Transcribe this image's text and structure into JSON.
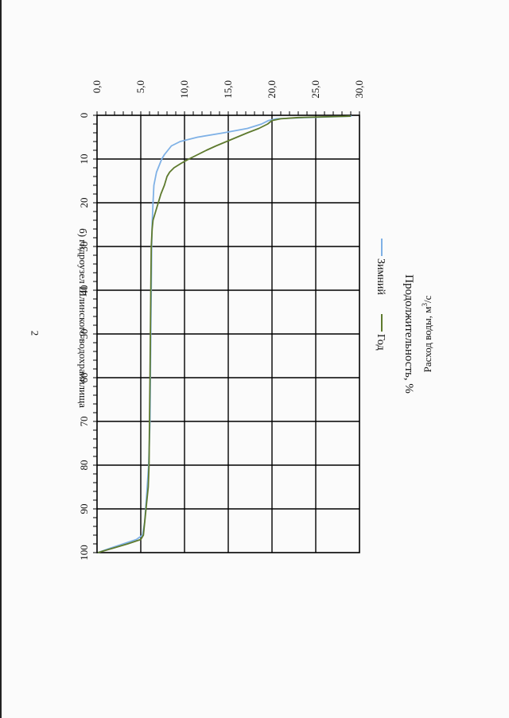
{
  "page": {
    "number": "2"
  },
  "chart_data": {
    "type": "line",
    "title": "б) гидроузел Шлинского водохранилища",
    "xlabel": "Продолжительность, %",
    "ylabel_main": "Расход воды, м",
    "ylabel_sup": "3",
    "ylabel_tail": "/с",
    "xlim": [
      0,
      100
    ],
    "ylim": [
      0,
      30
    ],
    "x_ticks": [
      "0",
      "10",
      "20",
      "30",
      "40",
      "50",
      "60",
      "70",
      "80",
      "90",
      "100"
    ],
    "y_ticks": [
      "0,0",
      "5,0",
      "10,0",
      "15,0",
      "20,0",
      "25,0",
      "30,0"
    ],
    "grid": true,
    "legend_position": "bottom",
    "series": [
      {
        "name": "Зимний",
        "color": "#7fb1e6",
        "points": [
          [
            0.2,
            29.1
          ],
          [
            0.5,
            24.0
          ],
          [
            0.8,
            20.5
          ],
          [
            1.2,
            19.6
          ],
          [
            2,
            18.8
          ],
          [
            3,
            17.2
          ],
          [
            4,
            14.5
          ],
          [
            5,
            11.5
          ],
          [
            6,
            9.5
          ],
          [
            7,
            8.5
          ],
          [
            8,
            8.1
          ],
          [
            9,
            7.7
          ],
          [
            10,
            7.4
          ],
          [
            11,
            7.2
          ],
          [
            12,
            7.0
          ],
          [
            13,
            6.8
          ],
          [
            14,
            6.7
          ],
          [
            15,
            6.6
          ],
          [
            16,
            6.5
          ],
          [
            20,
            6.4
          ],
          [
            25,
            6.3
          ],
          [
            30,
            6.25
          ],
          [
            40,
            6.2
          ],
          [
            50,
            6.15
          ],
          [
            60,
            6.1
          ],
          [
            70,
            6.05
          ],
          [
            80,
            5.9
          ],
          [
            83,
            5.8
          ],
          [
            86,
            5.7
          ],
          [
            90,
            5.55
          ],
          [
            93,
            5.45
          ],
          [
            96,
            5.2
          ],
          [
            97,
            4.5
          ],
          [
            98,
            3.0
          ],
          [
            99,
            1.5
          ],
          [
            100,
            0.1
          ]
        ]
      },
      {
        "name": "Год",
        "color": "#5e7a2e",
        "points": [
          [
            0.2,
            29.0
          ],
          [
            0.5,
            23.0
          ],
          [
            0.8,
            21.0
          ],
          [
            1.2,
            20.0
          ],
          [
            2,
            19.5
          ],
          [
            3,
            18.5
          ],
          [
            4,
            17.2
          ],
          [
            5,
            16.0
          ],
          [
            6,
            14.8
          ],
          [
            7,
            13.6
          ],
          [
            8,
            12.5
          ],
          [
            9,
            11.5
          ],
          [
            10,
            10.5
          ],
          [
            11,
            9.6
          ],
          [
            12,
            8.8
          ],
          [
            13,
            8.3
          ],
          [
            14,
            8.0
          ],
          [
            16,
            7.7
          ],
          [
            18,
            7.3
          ],
          [
            20,
            7.0
          ],
          [
            22,
            6.7
          ],
          [
            24,
            6.4
          ],
          [
            26,
            6.3
          ],
          [
            30,
            6.2
          ],
          [
            40,
            6.15
          ],
          [
            50,
            6.1
          ],
          [
            60,
            6.05
          ],
          [
            70,
            6.0
          ],
          [
            80,
            5.95
          ],
          [
            85,
            5.85
          ],
          [
            88,
            5.7
          ],
          [
            90,
            5.6
          ],
          [
            92,
            5.5
          ],
          [
            94,
            5.4
          ],
          [
            96,
            5.3
          ],
          [
            97,
            5.0
          ],
          [
            98,
            3.5
          ],
          [
            99,
            1.8
          ],
          [
            100,
            0.1
          ]
        ]
      }
    ]
  }
}
